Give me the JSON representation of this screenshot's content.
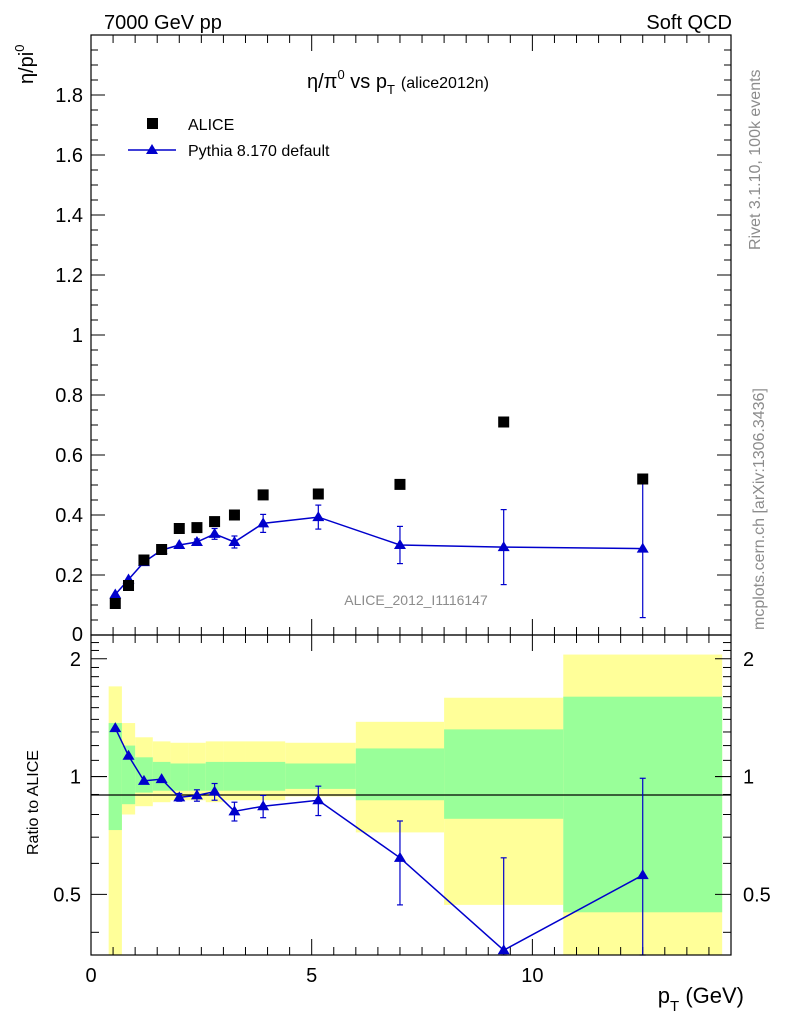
{
  "header": {
    "energy_label": "7000 GeV pp",
    "category_label": "Soft QCD"
  },
  "side_text": {
    "rivet_label": "Rivet 3.1.10,  100k events",
    "mcplots_label": "mcplots.cern.ch [arXiv:1306.3436]"
  },
  "chart_data": {
    "type": "scatter",
    "title": {
      "main": "η/π",
      "sup": "0",
      "mid": " vs p",
      "sub": "T",
      "tag": "(alice2012n)"
    },
    "ylabel": {
      "main": "η/pi",
      "sup": "0"
    },
    "xlabel": {
      "main": "p",
      "sub": "T",
      "unit": " (GeV)"
    },
    "analysis_id": "ALICE_2012_I1116147",
    "xlim": [
      0,
      14.5
    ],
    "ylim": [
      0,
      2.0
    ],
    "yticks": [
      0.2,
      0.4,
      0.6,
      0.8,
      1,
      1.2,
      1.4,
      1.6,
      1.8
    ],
    "ytick_labels": [
      "0.2",
      "0.4",
      "0.6",
      "0.8",
      "1",
      "1.2",
      "1.4",
      "1.6",
      "1.8"
    ],
    "y_zero_label": "0",
    "xticks": [
      0,
      5,
      10
    ],
    "xtick_labels": [
      "0",
      "5",
      "10"
    ],
    "legend": [
      {
        "name": "ALICE",
        "marker": "square",
        "color": "#000000"
      },
      {
        "name": "Pythia 8.170 default",
        "marker": "triangle",
        "color": "#0000cc"
      }
    ],
    "series": [
      {
        "name": "ALICE",
        "x": [
          0.55,
          0.85,
          1.2,
          1.6,
          2.0,
          2.4,
          2.8,
          3.25,
          3.9,
          5.15,
          7.0,
          9.35,
          12.5
        ],
        "y": [
          0.105,
          0.165,
          0.25,
          0.285,
          0.355,
          0.358,
          0.378,
          0.4,
          0.467,
          0.47,
          0.502,
          0.71,
          0.52
        ]
      },
      {
        "name": "Pythia 8.170 default",
        "x": [
          0.55,
          0.85,
          1.2,
          1.6,
          2.0,
          2.4,
          2.8,
          3.25,
          3.9,
          5.15,
          7.0,
          9.35,
          12.5
        ],
        "y": [
          0.135,
          0.185,
          0.243,
          0.283,
          0.3,
          0.31,
          0.337,
          0.31,
          0.372,
          0.393,
          0.3,
          0.293,
          0.288
        ],
        "err": [
          0.0,
          0.0,
          0.0,
          0.0,
          0.0,
          0.01,
          0.018,
          0.02,
          0.03,
          0.04,
          0.062,
          0.125,
          0.23
        ]
      }
    ],
    "ratio": {
      "ylabel": "Ratio to ALICE",
      "ylim": [
        0.35,
        2.3
      ],
      "scale": "log",
      "yticks": [
        0.5,
        1,
        2
      ],
      "ytick_labels": [
        "0.5",
        "1",
        "2"
      ],
      "bands": [
        {
          "x0": 0.4,
          "x1": 0.7,
          "green": [
            0.73,
            1.37
          ],
          "yellow": [
            0.35,
            1.7
          ]
        },
        {
          "x0": 0.7,
          "x1": 1.0,
          "green": [
            0.85,
            1.2
          ],
          "yellow": [
            0.8,
            1.37
          ]
        },
        {
          "x0": 1.0,
          "x1": 1.4,
          "green": [
            0.91,
            1.12
          ],
          "yellow": [
            0.84,
            1.26
          ]
        },
        {
          "x0": 1.4,
          "x1": 1.8,
          "green": [
            0.92,
            1.09
          ],
          "yellow": [
            0.86,
            1.23
          ]
        },
        {
          "x0": 1.8,
          "x1": 2.2,
          "green": [
            0.92,
            1.08
          ],
          "yellow": [
            0.87,
            1.22
          ]
        },
        {
          "x0": 2.2,
          "x1": 2.6,
          "green": [
            0.92,
            1.08
          ],
          "yellow": [
            0.87,
            1.22
          ]
        },
        {
          "x0": 2.6,
          "x1": 3.0,
          "green": [
            0.92,
            1.09
          ],
          "yellow": [
            0.86,
            1.23
          ]
        },
        {
          "x0": 3.0,
          "x1": 3.5,
          "green": [
            0.92,
            1.09
          ],
          "yellow": [
            0.87,
            1.23
          ]
        },
        {
          "x0": 3.5,
          "x1": 4.4,
          "green": [
            0.92,
            1.09
          ],
          "yellow": [
            0.87,
            1.23
          ]
        },
        {
          "x0": 4.4,
          "x1": 6.0,
          "green": [
            0.93,
            1.08
          ],
          "yellow": [
            0.89,
            1.22
          ]
        },
        {
          "x0": 6.0,
          "x1": 8.0,
          "green": [
            0.87,
            1.18
          ],
          "yellow": [
            0.72,
            1.38
          ]
        },
        {
          "x0": 8.0,
          "x1": 10.7,
          "green": [
            0.78,
            1.32
          ],
          "yellow": [
            0.47,
            1.59
          ]
        },
        {
          "x0": 10.7,
          "x1": 14.3,
          "green": [
            0.45,
            1.6
          ],
          "yellow": [
            0.35,
            2.05
          ]
        }
      ],
      "x": [
        0.55,
        0.85,
        1.2,
        1.6,
        2.0,
        2.4,
        2.8,
        3.25,
        3.9,
        5.15,
        7.0,
        9.35,
        12.5
      ],
      "y": [
        1.33,
        1.13,
        0.975,
        0.985,
        0.885,
        0.895,
        0.915,
        0.815,
        0.84,
        0.87,
        0.62,
        0.36,
        0.56
      ],
      "err": [
        0.0,
        0.0,
        0.0,
        0.0,
        0.02,
        0.03,
        0.045,
        0.045,
        0.055,
        0.075,
        0.15,
        0.26,
        0.43
      ]
    },
    "colors": {
      "data": "#000000",
      "mc": "#0000cc",
      "green_band": "#99ff99",
      "yellow_band": "#ffff99"
    }
  }
}
